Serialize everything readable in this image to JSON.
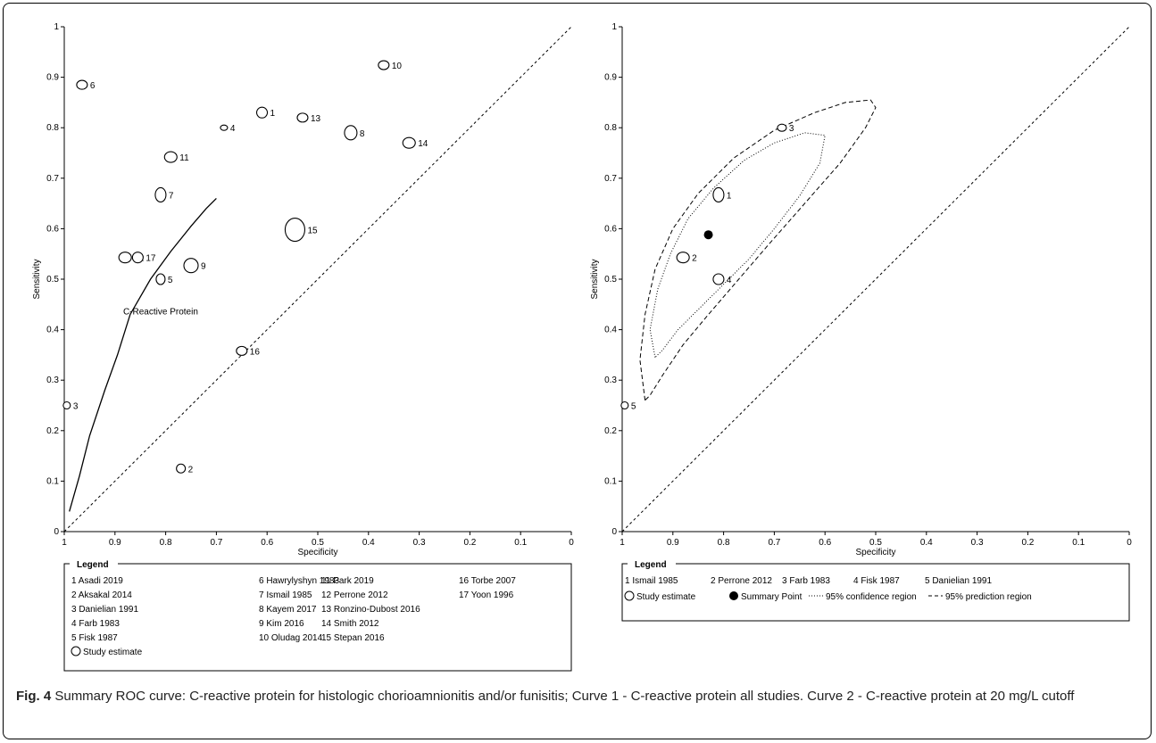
{
  "figure_label": "Fig. 4",
  "caption_text": "Summary ROC curve: C-reactive protein for histologic chorioamnionitis and/or funisitis; Curve 1 - C-reactive protein all studies. Curve 2 - C-reactive protein at 20 mg/L cutoff",
  "chart_data": [
    {
      "type": "scatter",
      "xlabel": "Specificity",
      "ylabel": "Sensitivity",
      "xlim": [
        1,
        0
      ],
      "ylim": [
        0,
        1
      ],
      "x_reversed": true,
      "x_ticks": [
        "1",
        "0.9",
        "0.8",
        "0.7",
        "0.6",
        "0.5",
        "0.4",
        "0.3",
        "0.2",
        "0.1",
        "0"
      ],
      "y_ticks": [
        "0",
        "0.1",
        "0.2",
        "0.3",
        "0.4",
        "0.5",
        "0.6",
        "0.7",
        "0.8",
        "0.9",
        "1"
      ],
      "points": [
        {
          "id": "1",
          "spec": 0.61,
          "sens": 0.83,
          "rx": 6,
          "ry": 6
        },
        {
          "id": "2",
          "spec": 0.77,
          "sens": 0.125,
          "rx": 5,
          "ry": 5
        },
        {
          "id": "3",
          "spec": 0.995,
          "sens": 0.25,
          "rx": 4,
          "ry": 4
        },
        {
          "id": "4",
          "spec": 0.685,
          "sens": 0.8,
          "rx": 4,
          "ry": 3
        },
        {
          "id": "5",
          "spec": 0.81,
          "sens": 0.5,
          "rx": 5,
          "ry": 6
        },
        {
          "id": "6",
          "spec": 0.965,
          "sens": 0.885,
          "rx": 6,
          "ry": 5
        },
        {
          "id": "7",
          "spec": 0.81,
          "sens": 0.667,
          "rx": 6,
          "ry": 8
        },
        {
          "id": "8",
          "spec": 0.435,
          "sens": 0.79,
          "rx": 7,
          "ry": 8
        },
        {
          "id": "9",
          "spec": 0.75,
          "sens": 0.527,
          "rx": 8,
          "ry": 8
        },
        {
          "id": "10",
          "spec": 0.37,
          "sens": 0.924,
          "rx": 6,
          "ry": 5
        },
        {
          "id": "11",
          "spec": 0.79,
          "sens": 0.742,
          "rx": 7,
          "ry": 6
        },
        {
          "id": "12",
          "spec": 0.88,
          "sens": 0.543,
          "rx": 7,
          "ry": 6
        },
        {
          "id": "13",
          "spec": 0.53,
          "sens": 0.82,
          "rx": 6,
          "ry": 5
        },
        {
          "id": "14",
          "spec": 0.32,
          "sens": 0.77,
          "rx": 7,
          "ry": 6
        },
        {
          "id": "15",
          "spec": 0.545,
          "sens": 0.598,
          "rx": 11,
          "ry": 13
        },
        {
          "id": "16",
          "spec": 0.65,
          "sens": 0.358,
          "rx": 6,
          "ry": 5
        },
        {
          "id": "17",
          "spec": 0.855,
          "sens": 0.543,
          "rx": 6,
          "ry": 6
        }
      ],
      "curve_label": "C-Reactive Protein",
      "curve": [
        [
          0.99,
          0.04
        ],
        [
          0.97,
          0.11
        ],
        [
          0.95,
          0.19
        ],
        [
          0.92,
          0.28
        ],
        [
          0.895,
          0.35
        ],
        [
          0.87,
          0.43
        ],
        [
          0.83,
          0.5
        ],
        [
          0.79,
          0.555
        ],
        [
          0.75,
          0.605
        ],
        [
          0.72,
          0.64
        ],
        [
          0.7,
          0.66
        ]
      ],
      "legend_title": "Legend",
      "legend": [
        [
          "1 Asadi 2019",
          "2 Aksakal 2014",
          "3 Danielian 1991",
          "4 Farb 1983",
          "5 Fisk 1987"
        ],
        [
          "6 Hawrylyshyn 1983",
          "7 Ismail 1985",
          "8 Kayem 2017",
          "9 Kim 2016",
          "10 Oludag 2014"
        ],
        [
          "11 Park 2019",
          "12 Perrone 2012",
          "13 Ronzino-Dubost 2016",
          "14 Smith 2012",
          "15 Stepan 2016"
        ],
        [
          "16 Torbe 2007",
          "17 Yoon 1996"
        ]
      ],
      "legend_symbol": "Study estimate"
    },
    {
      "type": "scatter",
      "xlabel": "Specificity",
      "ylabel": "Sensitivity",
      "xlim": [
        1,
        0
      ],
      "ylim": [
        0,
        1
      ],
      "x_reversed": true,
      "x_ticks": [
        "1",
        "0.9",
        "0.8",
        "0.7",
        "0.6",
        "0.5",
        "0.4",
        "0.3",
        "0.2",
        "0.1",
        "0"
      ],
      "y_ticks": [
        "0",
        "0.1",
        "0.2",
        "0.3",
        "0.4",
        "0.5",
        "0.6",
        "0.7",
        "0.8",
        "0.9",
        "1"
      ],
      "points": [
        {
          "id": "1",
          "spec": 0.81,
          "sens": 0.667,
          "rx": 6,
          "ry": 8
        },
        {
          "id": "2",
          "spec": 0.88,
          "sens": 0.543,
          "rx": 7,
          "ry": 6
        },
        {
          "id": "3",
          "spec": 0.685,
          "sens": 0.8,
          "rx": 5,
          "ry": 4
        },
        {
          "id": "4",
          "spec": 0.81,
          "sens": 0.5,
          "rx": 6,
          "ry": 6
        },
        {
          "id": "5",
          "spec": 0.995,
          "sens": 0.25,
          "rx": 4,
          "ry": 4
        }
      ],
      "summary_point": {
        "spec": 0.83,
        "sens": 0.588
      },
      "confidence_region": [
        [
          0.935,
          0.345
        ],
        [
          0.945,
          0.4
        ],
        [
          0.93,
          0.48
        ],
        [
          0.905,
          0.55
        ],
        [
          0.87,
          0.62
        ],
        [
          0.82,
          0.68
        ],
        [
          0.76,
          0.735
        ],
        [
          0.7,
          0.77
        ],
        [
          0.64,
          0.79
        ],
        [
          0.6,
          0.785
        ],
        [
          0.61,
          0.73
        ],
        [
          0.65,
          0.665
        ],
        [
          0.7,
          0.6
        ],
        [
          0.75,
          0.54
        ],
        [
          0.8,
          0.49
        ],
        [
          0.85,
          0.44
        ],
        [
          0.89,
          0.4
        ],
        [
          0.92,
          0.36
        ],
        [
          0.935,
          0.345
        ]
      ],
      "prediction_region": [
        [
          0.955,
          0.26
        ],
        [
          0.965,
          0.34
        ],
        [
          0.955,
          0.43
        ],
        [
          0.935,
          0.52
        ],
        [
          0.9,
          0.6
        ],
        [
          0.85,
          0.67
        ],
        [
          0.78,
          0.74
        ],
        [
          0.7,
          0.795
        ],
        [
          0.62,
          0.83
        ],
        [
          0.56,
          0.85
        ],
        [
          0.51,
          0.855
        ],
        [
          0.5,
          0.84
        ],
        [
          0.52,
          0.8
        ],
        [
          0.57,
          0.73
        ],
        [
          0.64,
          0.65
        ],
        [
          0.71,
          0.57
        ],
        [
          0.77,
          0.5
        ],
        [
          0.83,
          0.43
        ],
        [
          0.88,
          0.37
        ],
        [
          0.92,
          0.31
        ],
        [
          0.945,
          0.27
        ],
        [
          0.955,
          0.26
        ]
      ],
      "legend_title": "Legend",
      "legend": [
        [
          "1 Ismail 1985"
        ],
        [
          "2 Perrone 2012"
        ],
        [
          "3 Farb 1983"
        ],
        [
          "4 Fisk 1987"
        ],
        [
          "5 Danielian 1991"
        ]
      ],
      "legend_symbols": [
        "Study estimate",
        "Summary Point",
        "95% confidence region",
        "95% prediction region"
      ]
    }
  ]
}
